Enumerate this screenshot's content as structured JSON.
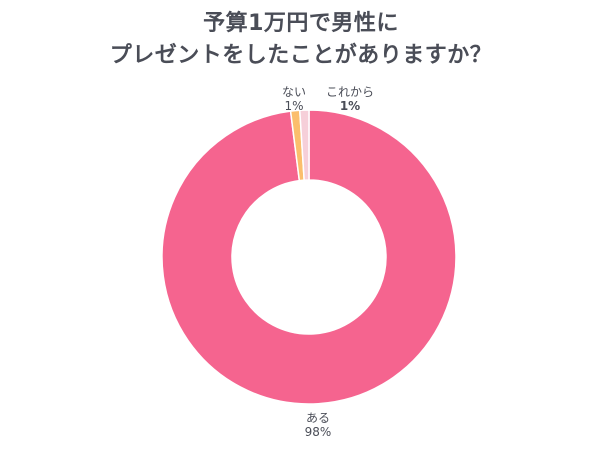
{
  "chart_data": {
    "type": "pie",
    "title_lines": [
      "予算1万円で男性に",
      "プレゼントをしたことがありますか？"
    ],
    "slices": [
      {
        "name": "ある",
        "value": 98,
        "label": "98%",
        "color": "#f5648f"
      },
      {
        "name": "ない",
        "value": 1,
        "label": "1%",
        "color": "#fbbe6c"
      },
      {
        "name": "これから",
        "value": 1,
        "label": "1%",
        "color": "#f6cfd9"
      }
    ],
    "legend": "none",
    "hole": "donut",
    "start": "top, clockwise"
  }
}
